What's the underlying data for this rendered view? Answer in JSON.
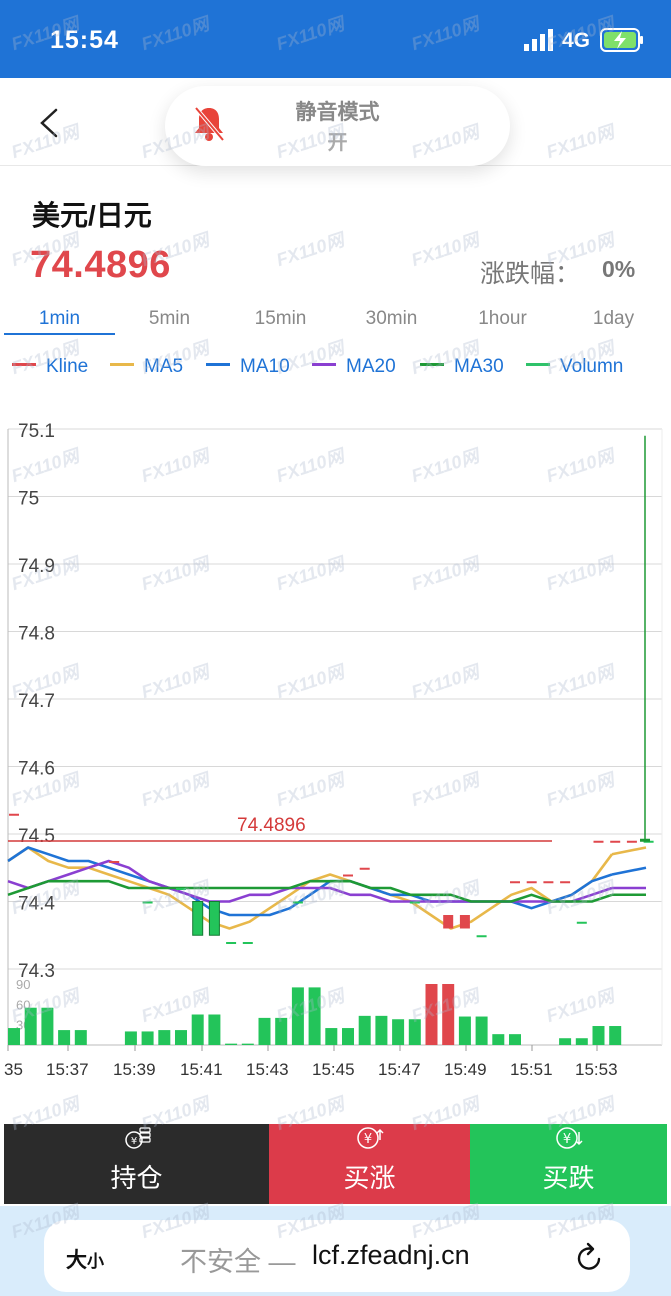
{
  "status_bar": {
    "time": "15:54",
    "network": "4G"
  },
  "header": {
    "mute_mode_title": "静音模式",
    "mute_mode_state": "开"
  },
  "quote": {
    "pair": "美元/日元",
    "price": "74.4896",
    "change_label": "涨跌幅：",
    "change_value": "0%"
  },
  "timeframes": [
    {
      "label": "1min",
      "active": true
    },
    {
      "label": "5min",
      "active": false
    },
    {
      "label": "15min",
      "active": false
    },
    {
      "label": "30min",
      "active": false
    },
    {
      "label": "1hour",
      "active": false
    },
    {
      "label": "1day",
      "active": false
    }
  ],
  "legend": [
    {
      "label": "Kline",
      "color": "#e0474c"
    },
    {
      "label": "MA5",
      "color": "#e8b84a"
    },
    {
      "label": "MA10",
      "color": "#1f73d6"
    },
    {
      "label": "MA20",
      "color": "#8a3fd1"
    },
    {
      "label": "MA30",
      "color": "#1e9a35"
    },
    {
      "label": "Volumn",
      "color": "#2fc26a"
    }
  ],
  "chart_data": {
    "type": "line",
    "price_axis": {
      "ylim": [
        74.3,
        75.1
      ],
      "ticks": [
        "75.1",
        "75",
        "74.9",
        "74.8",
        "74.7",
        "74.6",
        "74.5",
        "74.4",
        "74.3"
      ]
    },
    "volume_axis": {
      "ylim": [
        0,
        90
      ],
      "ticks": [
        "90",
        "60",
        "30"
      ]
    },
    "x_tick_labels": [
      "35",
      "15:37",
      "15:39",
      "15:41",
      "15:43",
      "15:45",
      "15:47",
      "15:49",
      "15:51",
      "15:53"
    ],
    "current_price_line": {
      "value": 74.4896,
      "label": "74.4896"
    },
    "series": [
      {
        "name": "MA5",
        "color": "#e8b84a",
        "values": [
          74.46,
          74.48,
          74.46,
          74.45,
          74.45,
          74.44,
          74.43,
          74.42,
          74.41,
          74.39,
          74.37,
          74.36,
          74.37,
          74.39,
          74.41,
          74.43,
          74.44,
          74.43,
          74.42,
          74.41,
          74.4,
          74.38,
          74.36,
          74.37,
          74.39,
          74.41,
          74.42,
          74.4,
          74.41,
          74.43,
          74.47
        ]
      },
      {
        "name": "MA10",
        "color": "#1f73d6",
        "values": [
          74.46,
          74.48,
          74.47,
          74.46,
          74.46,
          74.45,
          74.44,
          74.43,
          74.42,
          74.41,
          74.39,
          74.38,
          74.38,
          74.38,
          74.39,
          74.41,
          74.43,
          74.43,
          74.42,
          74.41,
          74.41,
          74.4,
          74.4,
          74.4,
          74.4,
          74.4,
          74.39,
          74.4,
          74.41,
          74.43,
          74.44
        ]
      },
      {
        "name": "MA20",
        "color": "#8a3fd1",
        "values": [
          74.43,
          74.42,
          74.43,
          74.44,
          74.45,
          74.46,
          74.45,
          74.43,
          74.42,
          74.41,
          74.4,
          74.4,
          74.41,
          74.41,
          74.42,
          74.42,
          74.42,
          74.41,
          74.41,
          74.4,
          74.4,
          74.4,
          74.4,
          74.4,
          74.4,
          74.4,
          74.4,
          74.4,
          74.4,
          74.41,
          74.42
        ]
      },
      {
        "name": "MA30",
        "color": "#1e9a35",
        "values": [
          74.41,
          74.42,
          74.43,
          74.43,
          74.43,
          74.43,
          74.42,
          74.42,
          74.42,
          74.42,
          74.42,
          74.42,
          74.42,
          74.42,
          74.42,
          74.43,
          74.43,
          74.43,
          74.42,
          74.42,
          74.41,
          74.41,
          74.41,
          74.4,
          74.4,
          74.4,
          74.41,
          74.4,
          74.4,
          74.4,
          74.41
        ]
      }
    ],
    "candles": [
      {
        "i": 0,
        "o": 74.53,
        "c": 74.53,
        "dir": "up"
      },
      {
        "i": 6,
        "o": 74.46,
        "c": 74.46,
        "dir": "up"
      },
      {
        "i": 8,
        "o": 74.4,
        "c": 74.4,
        "dir": "down"
      },
      {
        "i": 10,
        "o": 74.42,
        "c": 74.42,
        "dir": "down"
      },
      {
        "i": 11,
        "o": 74.4,
        "c": 74.35,
        "dir": "down"
      },
      {
        "i": 12,
        "o": 74.4,
        "c": 74.35,
        "dir": "down"
      },
      {
        "i": 13,
        "o": 74.34,
        "c": 74.34,
        "dir": "down"
      },
      {
        "i": 14,
        "o": 74.34,
        "c": 74.34,
        "dir": "down"
      },
      {
        "i": 17,
        "o": 74.4,
        "c": 74.4,
        "dir": "down"
      },
      {
        "i": 20,
        "o": 74.44,
        "c": 74.44,
        "dir": "up"
      },
      {
        "i": 21,
        "o": 74.45,
        "c": 74.45,
        "dir": "up"
      },
      {
        "i": 24,
        "o": 74.4,
        "c": 74.4,
        "dir": "down"
      },
      {
        "i": 26,
        "o": 74.38,
        "c": 74.36,
        "dir": "up"
      },
      {
        "i": 27,
        "o": 74.38,
        "c": 74.36,
        "dir": "up"
      },
      {
        "i": 28,
        "o": 74.35,
        "c": 74.35,
        "dir": "down"
      },
      {
        "i": 30,
        "o": 74.43,
        "c": 74.43,
        "dir": "up"
      },
      {
        "i": 31,
        "o": 74.43,
        "c": 74.43,
        "dir": "up"
      },
      {
        "i": 32,
        "o": 74.43,
        "c": 74.43,
        "dir": "up"
      },
      {
        "i": 33,
        "o": 74.43,
        "c": 74.43,
        "dir": "up"
      },
      {
        "i": 34,
        "o": 74.37,
        "c": 74.37,
        "dir": "down"
      },
      {
        "i": 35,
        "o": 74.49,
        "c": 74.49,
        "dir": "up"
      },
      {
        "i": 36,
        "o": 74.49,
        "c": 74.49,
        "dir": "up"
      },
      {
        "i": 37,
        "o": 74.49,
        "c": 74.49,
        "dir": "up"
      },
      {
        "i": 38,
        "o": 74.49,
        "c": 74.49,
        "dir": "down"
      }
    ],
    "volume": [
      {
        "v": 25,
        "dir": "down"
      },
      {
        "v": 55,
        "dir": "down"
      },
      {
        "v": 55,
        "dir": "down"
      },
      {
        "v": 22,
        "dir": "down"
      },
      {
        "v": 22,
        "dir": "down"
      },
      {
        "v": 0,
        "dir": "down"
      },
      {
        "v": 0,
        "dir": "down"
      },
      {
        "v": 20,
        "dir": "down"
      },
      {
        "v": 20,
        "dir": "down"
      },
      {
        "v": 22,
        "dir": "down"
      },
      {
        "v": 22,
        "dir": "down"
      },
      {
        "v": 45,
        "dir": "down"
      },
      {
        "v": 45,
        "dir": "down"
      },
      {
        "v": 2,
        "dir": "down"
      },
      {
        "v": 2,
        "dir": "down"
      },
      {
        "v": 40,
        "dir": "down"
      },
      {
        "v": 40,
        "dir": "down"
      },
      {
        "v": 85,
        "dir": "down"
      },
      {
        "v": 85,
        "dir": "down"
      },
      {
        "v": 25,
        "dir": "down"
      },
      {
        "v": 25,
        "dir": "down"
      },
      {
        "v": 43,
        "dir": "down"
      },
      {
        "v": 43,
        "dir": "down"
      },
      {
        "v": 38,
        "dir": "down"
      },
      {
        "v": 38,
        "dir": "down"
      },
      {
        "v": 100,
        "dir": "up"
      },
      {
        "v": 100,
        "dir": "up"
      },
      {
        "v": 42,
        "dir": "down"
      },
      {
        "v": 42,
        "dir": "down"
      },
      {
        "v": 16,
        "dir": "down"
      },
      {
        "v": 16,
        "dir": "down"
      },
      {
        "v": 0,
        "dir": "down"
      },
      {
        "v": 0,
        "dir": "down"
      },
      {
        "v": 10,
        "dir": "down"
      },
      {
        "v": 10,
        "dir": "down"
      },
      {
        "v": 28,
        "dir": "down"
      },
      {
        "v": 28,
        "dir": "down"
      },
      {
        "v": 0,
        "dir": "down"
      },
      {
        "v": 0,
        "dir": "down"
      }
    ],
    "spike": {
      "low": 74.49,
      "high": 75.09
    }
  },
  "actions": {
    "hold": "持仓",
    "buy_up": "买涨",
    "buy_down": "买跌"
  },
  "browser": {
    "text_size": "大",
    "text_size_small": "小",
    "insecure": "不安全 —",
    "url": "lcf.zfeadnj.cn"
  },
  "watermark": "FX110网",
  "colors": {
    "up": "#e0474c",
    "down": "#23c45a",
    "accent": "#1f73d6"
  }
}
